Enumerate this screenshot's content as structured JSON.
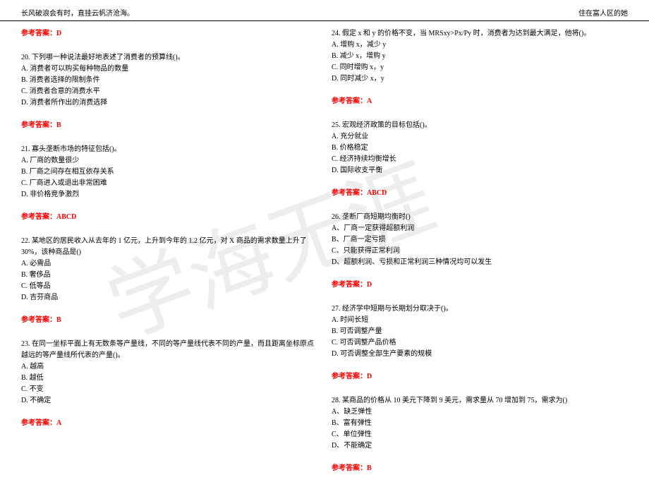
{
  "header": {
    "left": "长风破浪会有时，直挂云帆济沧海。",
    "right": "住在富人区的她"
  },
  "watermark": "学海无涯",
  "answer_label": "参考答案：",
  "left_column": [
    {
      "pre_answer": "D",
      "stem": "20. 下列哪一种说法最好地表述了消费者的预算线()。",
      "options": [
        "A. 消费者可以购买每种物品的数量",
        "B. 消费者选择的限制条件",
        "C. 消费者合意的消费水平",
        "D. 消费者所作出的消费选择"
      ],
      "answer": "B"
    },
    {
      "stem": "21. 寡头垄断市场的特征包括()。",
      "options": [
        "A. 厂商的数量很少",
        "B. 厂商之间存在相互依存关系",
        "C. 厂商进入或退出非常困难",
        "D. 非价格竞争激烈"
      ],
      "answer": "ABCD"
    },
    {
      "stem": "22. 某地区的居民收入从去年的 1 亿元，上升到今年的 1.2 亿元，对 X 商品的需求数量上升了 30%，该种商品是()",
      "options": [
        "A. 必需品",
        "B. 奢侈品",
        "C. 低等品",
        "D. 吉芬商品"
      ],
      "answer": "B"
    },
    {
      "stem": "23. 在同一坐标平面上有无数条等产量线，不同的等产量线代表不同的产量，而且距离坐标原点越远的等产量线所代表的产量()。",
      "options": [
        "A. 越高",
        "B. 越低",
        "C. 不变",
        "D. 不确定"
      ],
      "answer": "A"
    }
  ],
  "right_column": [
    {
      "stem": "24. 假定 x 和 y 的价格不变，当 MRSxy>Px/Py 时，消费者为达到最大满足，他将()。",
      "options": [
        "A. 增购 x，减少 y",
        "B. 减少 x，增购 y",
        "C. 同时增购 x，y",
        "D. 同时减少 x，y"
      ],
      "answer": "A"
    },
    {
      "stem": "25. 宏观经济政策的目标包括()。",
      "options": [
        "A. 充分就业",
        "B. 价格稳定",
        "C. 经济持续均衡增长",
        "D. 国际收支平衡"
      ],
      "answer": "ABCD"
    },
    {
      "stem": "26. 垄断厂商短期均衡时()",
      "options": [
        "A、厂商一定获得超额利润",
        "B、厂商一定亏损",
        "C、只能获得正常利润",
        "D、超额利润、亏损和正常利润三种情况均可以发生"
      ],
      "answer": "D"
    },
    {
      "stem": "27. 经济学中短期与长期划分取决于()。",
      "options": [
        "A. 时间长短",
        "B. 可否调整产量",
        "C. 可否调整产品价格",
        "D. 可否调整全部生产要素的规模"
      ],
      "answer": "D"
    },
    {
      "stem": "28. 某商品的价格从 10 美元下降到 9 美元，需求量从 70 增加到 75，需求为()",
      "options": [
        "A、缺乏弹性",
        "B、富有弹性",
        "C、单位弹性",
        "D、不能确定"
      ],
      "answer": "B"
    }
  ]
}
